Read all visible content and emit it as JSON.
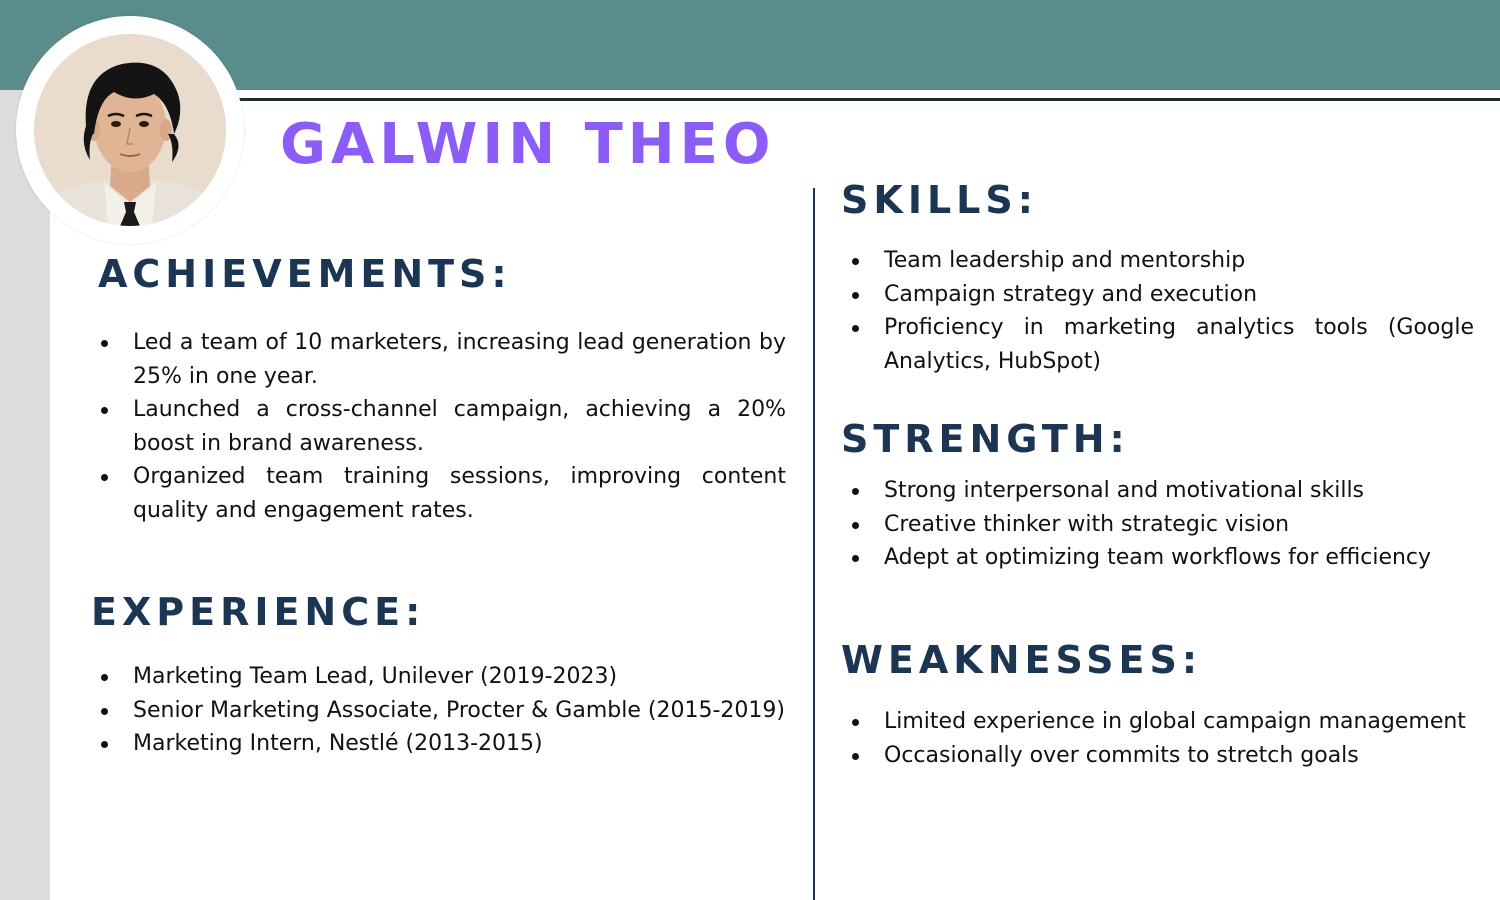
{
  "profile": {
    "name": "GALWIN THEO"
  },
  "sections": {
    "achievements": {
      "heading": "ACHIEVEMENTS:",
      "items": [
        "Led a team of 10 marketers, increasing lead generation by 25% in one year.",
        "Launched a cross-channel campaign, achieving a 20% boost in brand awareness.",
        "Organized team training sessions, improving content quality and engagement rates."
      ]
    },
    "experience": {
      "heading": "EXPERIENCE:",
      "items": [
        "Marketing Team Lead, Unilever (2019-2023)",
        "Senior Marketing Associate, Procter & Gamble (2015-2019)",
        "Marketing Intern, Nestlé (2013-2015)"
      ]
    },
    "skills": {
      "heading": "SKILLS:",
      "items": [
        "Team leadership and mentorship",
        "Campaign strategy and execution",
        "Proficiency in marketing analytics tools (Google Analytics, HubSpot)"
      ]
    },
    "strength": {
      "heading": "STRENGTH:",
      "items": [
        "Strong interpersonal and motivational skills",
        "Creative thinker with strategic vision",
        "Adept at optimizing team workflows for efficiency"
      ]
    },
    "weaknesses": {
      "heading": "WEAKNESSES:",
      "items": [
        "Limited experience in global campaign management",
        "Occasionally over commits to stretch goals"
      ]
    }
  },
  "colors": {
    "header_band": "#5a8c8c",
    "name": "#8b5cf6",
    "heading": "#1b3553",
    "side_strip": "#dcdcdc"
  }
}
